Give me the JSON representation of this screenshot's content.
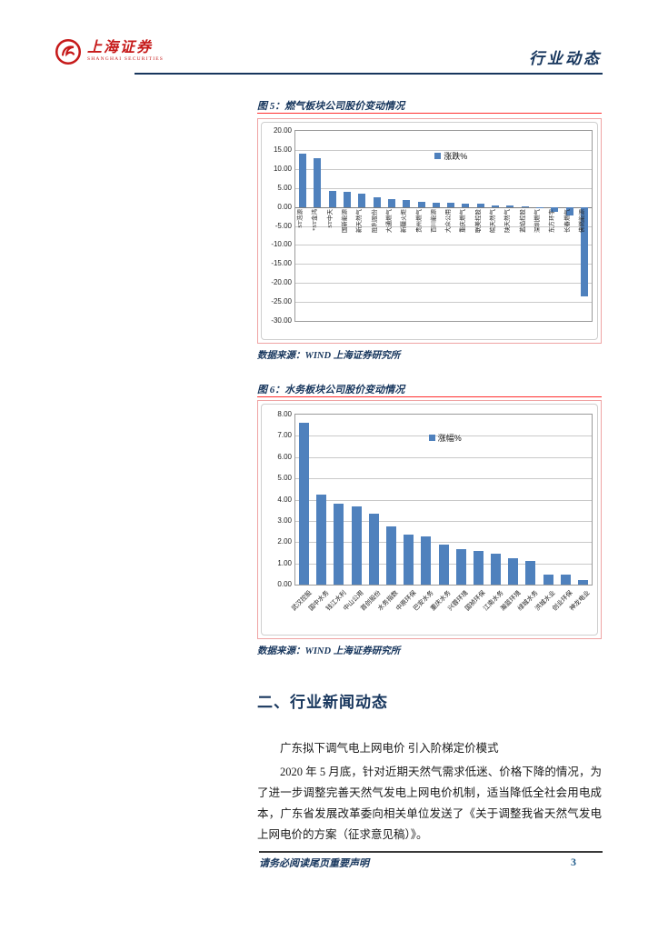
{
  "header": {
    "brand_zh": "上海证券",
    "brand_en": "SHANGHAI SECURITIES",
    "page_tag": "行业动态"
  },
  "fig5": {
    "caption": "图 5：燃气板块公司股价变动情况",
    "source": "数据来源：WIND  上海证券研究所"
  },
  "fig6": {
    "caption": "图 6：水务板块公司股价变动情况",
    "source": "数据来源：WIND  上海证券研究所"
  },
  "section": {
    "heading": "二、行业新闻动态",
    "subheading": "广东拟下调气电上网电价 引入阶梯定价模式",
    "paragraph": "2020 年 5 月底，针对近期天然气需求低迷、价格下降的情况，为了进一步调整完善天然气发电上网电价机制，适当降低全社会用电成本，广东省发展改革委向相关单位发送了《关于调整我省天然气发电上网电价的方案（征求意见稿）》。"
  },
  "footer": {
    "disclaimer": "请务必阅读尾页重要声明",
    "page_number": "3"
  },
  "colors": {
    "accent_navy": "#17365d",
    "bar_blue": "#4f81bd",
    "caption_rule_red": "#ff2e2e",
    "logo_red": "#c61a1a"
  },
  "chart_data": [
    {
      "id": "fig5",
      "type": "bar",
      "title": "燃气板块公司股价变动情况",
      "legend": "涨跌%",
      "ylim": [
        -30,
        20
      ],
      "yticks": [
        20,
        15,
        10,
        5,
        0,
        -5,
        -10,
        -15,
        -20,
        -25,
        -30
      ],
      "grid": true,
      "legend_position": "inside-top-center",
      "label_style": "vertical",
      "categories": [
        "ST浩源",
        "*ST金鸿",
        "ST中天",
        "国新能源",
        "新天然气",
        "胜利股份",
        "大通燃气",
        "新疆火炬",
        "贵州燃气",
        "百川能源",
        "大众公用",
        "重庆燃气",
        "联美控股",
        "皖天然气",
        "陕天然气",
        "蓝焰控股",
        "深圳燃气",
        "东方环宇",
        "长春燃气",
        "佛燃能源"
      ],
      "values": [
        14.0,
        12.8,
        4.3,
        3.9,
        3.4,
        2.6,
        2.1,
        1.7,
        1.4,
        1.2,
        1.1,
        0.9,
        0.8,
        0.4,
        0.35,
        0.1,
        -0.4,
        -1.2,
        -2.2,
        -23.5
      ]
    },
    {
      "id": "fig6",
      "type": "bar",
      "title": "水务板块公司股价变动情况",
      "legend": "涨幅%",
      "ylim": [
        0,
        8
      ],
      "yticks": [
        8,
        7,
        6,
        5,
        4,
        3,
        2,
        1,
        0
      ],
      "grid": true,
      "legend_position": "inside-top-center",
      "label_style": "diagonal",
      "categories": [
        "武汉控股",
        "国中水务",
        "钱江水利",
        "中山公用",
        "首创股份",
        "水务指数",
        "中原环保",
        "巴安水务",
        "重庆水务",
        "兴蓉环境",
        "国祯环保",
        "江南水务",
        "瀚蓝环境",
        "绿城水务",
        "洪城水业",
        "创业环保",
        "神龙电业"
      ],
      "values": [
        7.6,
        4.25,
        3.8,
        3.7,
        3.35,
        2.75,
        2.35,
        2.25,
        1.9,
        1.65,
        1.6,
        1.45,
        1.25,
        1.1,
        0.45,
        0.45,
        0.2
      ]
    }
  ]
}
